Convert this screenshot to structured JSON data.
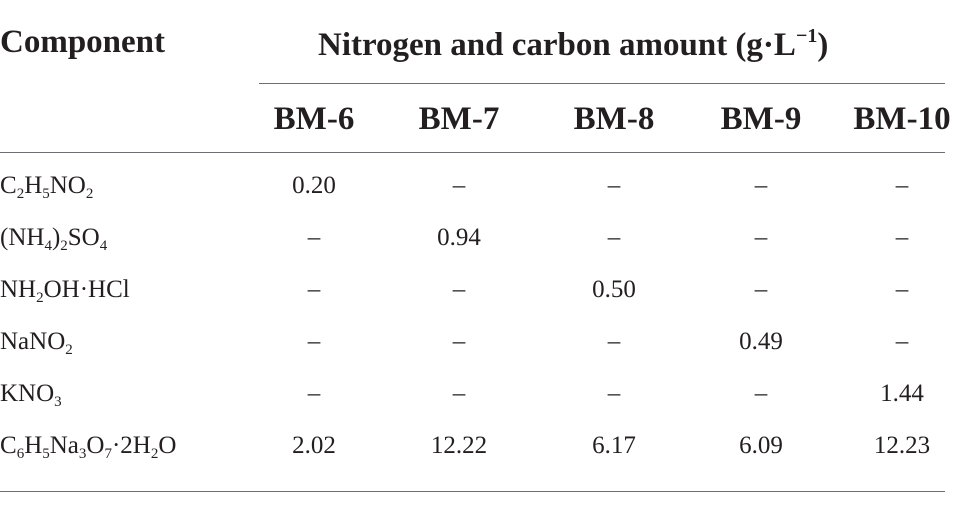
{
  "table": {
    "header": {
      "component_label": "Component",
      "group_label": "Nitrogen and carbon amount (g·L",
      "group_label_sup": "−1",
      "group_label_end": ")",
      "columns": [
        "BM-6",
        "BM-7",
        "BM-8",
        "BM-9",
        "BM-10"
      ]
    },
    "rows": [
      {
        "component": [
          {
            "t": "C"
          },
          {
            "t": "2",
            "sub": true
          },
          {
            "t": "H"
          },
          {
            "t": "5",
            "sub": true
          },
          {
            "t": "NO"
          },
          {
            "t": "2",
            "sub": true
          }
        ],
        "values": [
          "0.20",
          "–",
          "–",
          "–",
          "–"
        ]
      },
      {
        "component": [
          {
            "t": "(NH"
          },
          {
            "t": "4",
            "sub": true
          },
          {
            "t": ")"
          },
          {
            "t": "2",
            "sub": true
          },
          {
            "t": "SO"
          },
          {
            "t": "4",
            "sub": true
          }
        ],
        "values": [
          "–",
          "0.94",
          "–",
          "–",
          "–"
        ]
      },
      {
        "component": [
          {
            "t": "NH"
          },
          {
            "t": "2",
            "sub": true
          },
          {
            "t": "OH·HCl"
          }
        ],
        "values": [
          "–",
          "–",
          "0.50",
          "–",
          "–"
        ]
      },
      {
        "component": [
          {
            "t": "NaNO"
          },
          {
            "t": "2",
            "sub": true
          }
        ],
        "values": [
          "–",
          "–",
          "–",
          "0.49",
          "–"
        ]
      },
      {
        "component": [
          {
            "t": "KNO"
          },
          {
            "t": "3",
            "sub": true
          }
        ],
        "values": [
          "–",
          "–",
          "–",
          "–",
          "1.44"
        ]
      },
      {
        "component": [
          {
            "t": "C"
          },
          {
            "t": "6",
            "sub": true
          },
          {
            "t": "H"
          },
          {
            "t": "5",
            "sub": true
          },
          {
            "t": "Na"
          },
          {
            "t": "3",
            "sub": true
          },
          {
            "t": "O"
          },
          {
            "t": "7",
            "sub": true
          },
          {
            "t": "·2H"
          },
          {
            "t": "2",
            "sub": true
          },
          {
            "t": "O"
          }
        ],
        "values": [
          "2.02",
          "12.22",
          "6.17",
          "6.09",
          "12.23"
        ]
      }
    ]
  }
}
